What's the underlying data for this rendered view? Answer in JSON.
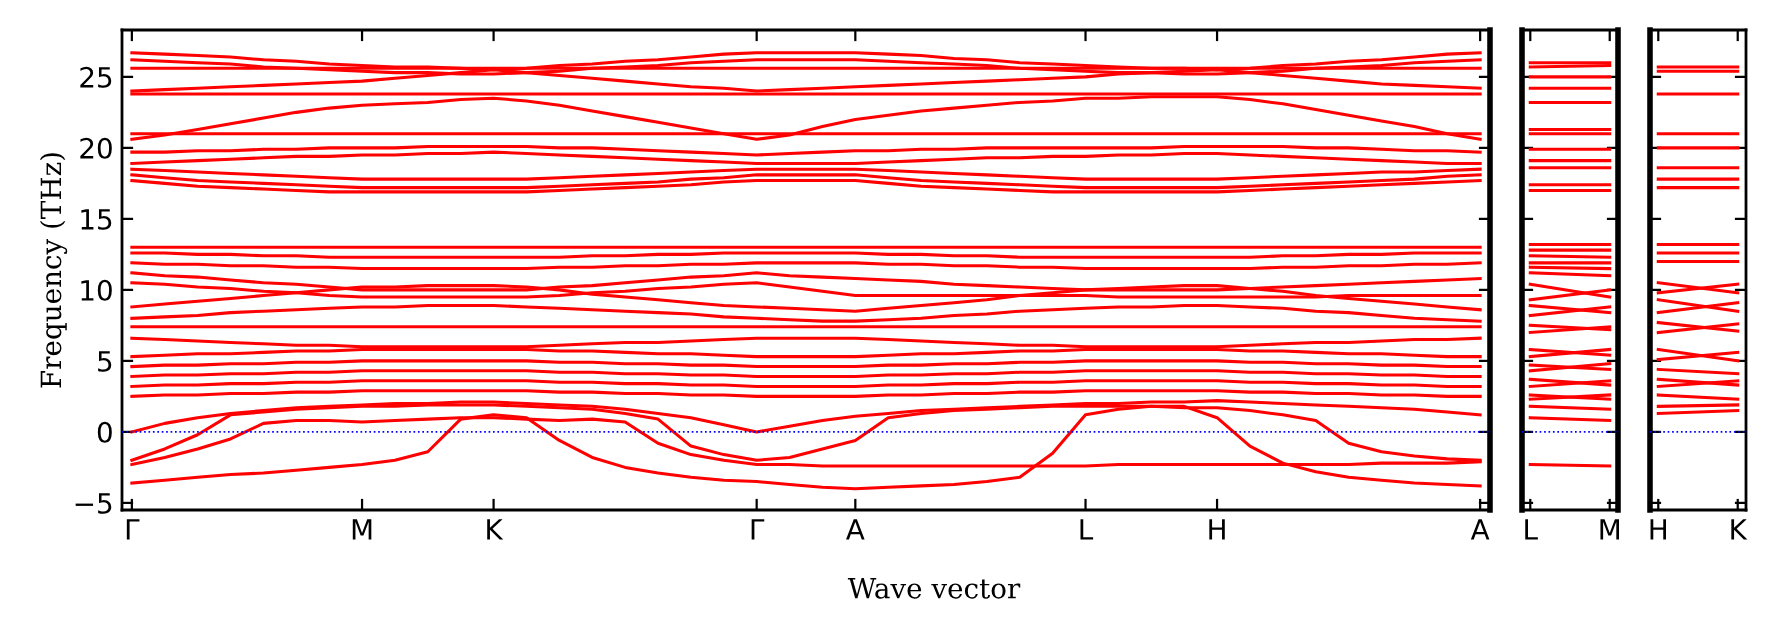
{
  "chart_data": [
    {
      "type": "line",
      "ylabel": "Frequency (THz)",
      "xlabel": "Wave vector",
      "ylim": [
        -5.5,
        28.3
      ],
      "categories": [
        "Γ",
        null,
        null,
        null,
        null,
        null,
        null,
        "M",
        null,
        null,
        null,
        "K",
        null,
        null,
        null,
        null,
        null,
        null,
        null,
        "Γ",
        null,
        null,
        "A",
        null,
        null,
        null,
        null,
        null,
        null,
        "L",
        null,
        null,
        null,
        "H",
        null,
        null,
        null,
        null,
        null,
        null,
        null,
        "A"
      ],
      "yticks": [
        {
          "value": -5,
          "label": "−5"
        },
        0,
        5,
        10,
        15,
        20,
        25
      ],
      "grid": false,
      "line_style": "solid",
      "marker": "none",
      "ref_lines": [
        {
          "axis": "y",
          "value": 0,
          "color": "#0000ff",
          "line_style": "dotted"
        }
      ],
      "series": [
        {
          "color": "#ff0000",
          "values": [
            26.7,
            26.6,
            26.5,
            26.4,
            26.2,
            26.1,
            25.9,
            25.8,
            25.7,
            25.7,
            25.6,
            25.5,
            25.6,
            25.8,
            25.9,
            26.1,
            26.2,
            26.4,
            26.6,
            26.7,
            26.7,
            26.7,
            26.7,
            26.6,
            26.5,
            26.3,
            26.2,
            26.0,
            25.9,
            25.8,
            25.7,
            25.6,
            25.6,
            25.5,
            25.6,
            25.8,
            25.9,
            26.1,
            26.2,
            26.4,
            26.6,
            26.7
          ]
        },
        {
          "color": "#ff0000",
          "values": [
            26.2,
            26.1,
            26.0,
            25.9,
            25.7,
            25.6,
            25.5,
            25.4,
            25.3,
            25.3,
            25.2,
            25.2,
            25.3,
            25.4,
            25.6,
            25.7,
            25.8,
            26.0,
            26.1,
            26.2,
            26.2,
            26.2,
            26.2,
            26.1,
            26.0,
            25.9,
            25.8,
            25.6,
            25.5,
            25.4,
            25.3,
            25.3,
            25.2,
            25.2,
            25.3,
            25.4,
            25.6,
            25.7,
            25.8,
            26.0,
            26.1,
            26.2
          ]
        },
        {
          "color": "#ff0000",
          "values": [
            24.0,
            24.1,
            24.2,
            24.3,
            24.4,
            24.5,
            24.6,
            24.7,
            24.9,
            25.1,
            25.3,
            25.5,
            25.3,
            25.1,
            24.9,
            24.7,
            24.5,
            24.3,
            24.2,
            24.0,
            24.1,
            24.2,
            24.3,
            24.4,
            24.5,
            24.6,
            24.7,
            24.8,
            24.9,
            25.0,
            25.2,
            25.3,
            25.4,
            25.5,
            25.3,
            25.1,
            24.9,
            24.7,
            24.5,
            24.4,
            24.3,
            24.2
          ]
        },
        {
          "color": "#ff0000",
          "values": [
            25.6,
            25.6,
            25.6,
            25.6,
            25.6,
            25.6,
            25.6,
            25.6,
            25.6,
            25.6,
            25.6,
            25.6,
            25.6,
            25.6,
            25.6,
            25.6,
            25.6,
            25.6,
            25.6,
            25.6,
            25.6,
            25.6,
            25.6,
            25.6,
            25.6,
            25.6,
            25.6,
            25.6,
            25.6,
            25.6,
            25.6,
            25.6,
            25.6,
            25.6,
            25.6,
            25.6,
            25.6,
            25.6,
            25.6,
            25.6,
            25.6,
            25.6
          ]
        },
        {
          "color": "#ff0000",
          "values": [
            23.8,
            23.8,
            23.8,
            23.8,
            23.8,
            23.8,
            23.8,
            23.8,
            23.8,
            23.8,
            23.8,
            23.8,
            23.8,
            23.8,
            23.8,
            23.8,
            23.8,
            23.8,
            23.8,
            23.8,
            23.8,
            23.8,
            23.8,
            23.8,
            23.8,
            23.8,
            23.8,
            23.8,
            23.8,
            23.8,
            23.8,
            23.8,
            23.8,
            23.8,
            23.8,
            23.8,
            23.8,
            23.8,
            23.8,
            23.8,
            23.8,
            23.8
          ]
        },
        {
          "color": "#ff0000",
          "values": [
            20.6,
            20.9,
            21.3,
            21.7,
            22.1,
            22.5,
            22.8,
            23.0,
            23.1,
            23.2,
            23.4,
            23.5,
            23.3,
            23.0,
            22.6,
            22.2,
            21.8,
            21.4,
            21.0,
            20.6,
            20.9,
            21.5,
            22.0,
            22.3,
            22.6,
            22.8,
            23.0,
            23.2,
            23.3,
            23.5,
            23.5,
            23.6,
            23.6,
            23.6,
            23.4,
            23.1,
            22.7,
            22.3,
            21.9,
            21.5,
            21.0,
            20.6
          ]
        },
        {
          "color": "#ff0000",
          "values": [
            21.0,
            21.0,
            21.0,
            21.0,
            21.0,
            21.0,
            21.0,
            21.0,
            21.0,
            21.0,
            21.0,
            21.0,
            21.0,
            21.0,
            21.0,
            21.0,
            21.0,
            21.0,
            21.0,
            21.0,
            21.0,
            21.0,
            21.0,
            21.0,
            21.0,
            21.0,
            21.0,
            21.0,
            21.0,
            21.0,
            21.0,
            21.0,
            21.0,
            21.0,
            21.0,
            21.0,
            21.0,
            21.0,
            21.0,
            21.0,
            21.0,
            21.0
          ]
        },
        {
          "color": "#ff0000",
          "values": [
            19.7,
            19.7,
            19.8,
            19.8,
            19.9,
            19.9,
            20.0,
            20.0,
            20.0,
            20.1,
            20.1,
            20.1,
            20.1,
            20.0,
            20.0,
            19.9,
            19.8,
            19.7,
            19.6,
            19.5,
            19.6,
            19.7,
            19.8,
            19.8,
            19.9,
            19.9,
            20.0,
            20.0,
            20.0,
            20.0,
            20.0,
            20.0,
            20.1,
            20.1,
            20.1,
            20.1,
            20.0,
            20.0,
            19.9,
            19.8,
            19.8,
            19.7
          ]
        },
        {
          "color": "#ff0000",
          "values": [
            18.9,
            19.0,
            19.1,
            19.2,
            19.3,
            19.4,
            19.4,
            19.5,
            19.5,
            19.6,
            19.6,
            19.7,
            19.6,
            19.5,
            19.4,
            19.3,
            19.2,
            19.1,
            19.0,
            18.9,
            18.9,
            18.9,
            18.9,
            19.0,
            19.1,
            19.2,
            19.3,
            19.3,
            19.4,
            19.4,
            19.5,
            19.5,
            19.6,
            19.6,
            19.5,
            19.4,
            19.3,
            19.2,
            19.1,
            19.0,
            18.9,
            18.9
          ]
        },
        {
          "color": "#ff0000",
          "values": [
            18.5,
            18.4,
            18.3,
            18.2,
            18.1,
            18.0,
            17.9,
            17.8,
            17.8,
            17.8,
            17.8,
            17.8,
            17.8,
            17.9,
            18.0,
            18.1,
            18.2,
            18.3,
            18.4,
            18.5,
            18.5,
            18.5,
            18.5,
            18.4,
            18.3,
            18.2,
            18.1,
            18.0,
            17.9,
            17.8,
            17.8,
            17.8,
            17.8,
            17.8,
            17.9,
            18.0,
            18.1,
            18.2,
            18.3,
            18.3,
            18.4,
            18.5
          ]
        },
        {
          "color": "#ff0000",
          "values": [
            18.1,
            17.9,
            17.7,
            17.6,
            17.5,
            17.4,
            17.3,
            17.2,
            17.2,
            17.2,
            17.2,
            17.2,
            17.2,
            17.3,
            17.4,
            17.5,
            17.6,
            17.8,
            17.9,
            18.1,
            18.1,
            18.1,
            18.1,
            17.9,
            17.7,
            17.6,
            17.5,
            17.4,
            17.3,
            17.2,
            17.2,
            17.2,
            17.2,
            17.2,
            17.3,
            17.4,
            17.5,
            17.6,
            17.7,
            17.8,
            18.0,
            18.1
          ]
        },
        {
          "color": "#ff0000",
          "values": [
            17.7,
            17.5,
            17.3,
            17.2,
            17.1,
            17.0,
            16.9,
            16.9,
            16.9,
            16.9,
            16.9,
            16.9,
            16.9,
            17.0,
            17.1,
            17.2,
            17.3,
            17.4,
            17.6,
            17.7,
            17.7,
            17.7,
            17.7,
            17.5,
            17.3,
            17.2,
            17.1,
            17.0,
            16.9,
            16.9,
            16.9,
            16.9,
            16.9,
            16.9,
            17.0,
            17.1,
            17.2,
            17.3,
            17.4,
            17.5,
            17.6,
            17.7
          ]
        },
        {
          "color": "#ff0000",
          "values": [
            13.0,
            13.0,
            13.0,
            13.0,
            13.0,
            13.0,
            13.0,
            13.0,
            13.0,
            13.0,
            13.0,
            13.0,
            13.0,
            13.0,
            13.0,
            13.0,
            13.0,
            13.0,
            13.0,
            13.0,
            13.0,
            13.0,
            13.0,
            13.0,
            13.0,
            13.0,
            13.0,
            13.0,
            13.0,
            13.0,
            13.0,
            13.0,
            13.0,
            13.0,
            13.0,
            13.0,
            13.0,
            13.0,
            13.0,
            13.0,
            13.0,
            13.0
          ]
        },
        {
          "color": "#ff0000",
          "values": [
            12.6,
            12.6,
            12.5,
            12.5,
            12.4,
            12.4,
            12.3,
            12.3,
            12.3,
            12.3,
            12.3,
            12.3,
            12.3,
            12.3,
            12.4,
            12.4,
            12.5,
            12.5,
            12.6,
            12.6,
            12.6,
            12.6,
            12.6,
            12.5,
            12.5,
            12.4,
            12.4,
            12.3,
            12.3,
            12.3,
            12.3,
            12.3,
            12.3,
            12.3,
            12.3,
            12.4,
            12.4,
            12.5,
            12.5,
            12.6,
            12.6,
            12.6
          ]
        },
        {
          "color": "#ff0000",
          "values": [
            11.9,
            11.8,
            11.8,
            11.7,
            11.7,
            11.6,
            11.6,
            11.5,
            11.5,
            11.5,
            11.5,
            11.5,
            11.5,
            11.6,
            11.6,
            11.7,
            11.7,
            11.8,
            11.8,
            11.9,
            11.9,
            11.9,
            11.9,
            11.8,
            11.8,
            11.7,
            11.7,
            11.6,
            11.6,
            11.5,
            11.5,
            11.5,
            11.5,
            11.5,
            11.5,
            11.6,
            11.6,
            11.7,
            11.7,
            11.8,
            11.8,
            11.9
          ]
        },
        {
          "color": "#ff0000",
          "values": [
            11.2,
            11.0,
            10.9,
            10.7,
            10.5,
            10.4,
            10.2,
            10.0,
            10.0,
            10.0,
            10.0,
            10.0,
            10.0,
            10.2,
            10.3,
            10.5,
            10.7,
            10.9,
            11.0,
            11.2,
            11.0,
            10.9,
            10.8,
            10.7,
            10.6,
            10.4,
            10.3,
            10.2,
            10.1,
            10.0,
            10.0,
            10.0,
            10.0,
            10.0,
            10.1,
            10.2,
            10.3,
            10.4,
            10.5,
            10.6,
            10.7,
            10.8
          ]
        },
        {
          "color": "#ff0000",
          "values": [
            10.5,
            10.4,
            10.2,
            10.1,
            9.9,
            9.8,
            9.6,
            9.5,
            9.5,
            9.5,
            9.5,
            9.5,
            9.5,
            9.6,
            9.8,
            9.9,
            10.1,
            10.2,
            10.4,
            10.5,
            10.2,
            9.9,
            9.6,
            9.6,
            9.6,
            9.6,
            9.6,
            9.6,
            9.6,
            9.6,
            9.5,
            9.5,
            9.5,
            9.5,
            9.5,
            9.5,
            9.5,
            9.6,
            9.6,
            9.6,
            9.6,
            9.6
          ]
        },
        {
          "color": "#ff0000",
          "values": [
            8.8,
            9.0,
            9.2,
            9.4,
            9.6,
            9.8,
            10.0,
            10.2,
            10.2,
            10.3,
            10.3,
            10.3,
            10.2,
            10.0,
            9.7,
            9.5,
            9.3,
            9.1,
            8.9,
            8.8,
            8.7,
            8.6,
            8.5,
            8.7,
            8.9,
            9.1,
            9.3,
            9.6,
            9.8,
            10.0,
            10.1,
            10.2,
            10.3,
            10.3,
            10.1,
            9.9,
            9.6,
            9.4,
            9.2,
            9.0,
            8.8,
            8.6
          ]
        },
        {
          "color": "#ff0000",
          "values": [
            8.0,
            8.1,
            8.2,
            8.4,
            8.5,
            8.6,
            8.7,
            8.8,
            8.8,
            8.9,
            8.9,
            8.9,
            8.8,
            8.7,
            8.6,
            8.5,
            8.4,
            8.3,
            8.1,
            8.0,
            7.9,
            7.8,
            7.8,
            7.9,
            8.0,
            8.2,
            8.3,
            8.5,
            8.6,
            8.7,
            8.8,
            8.8,
            8.9,
            8.9,
            8.8,
            8.7,
            8.5,
            8.4,
            8.2,
            8.0,
            7.9,
            7.8
          ]
        },
        {
          "color": "#ff0000",
          "values": [
            7.4,
            7.4,
            7.4,
            7.4,
            7.4,
            7.4,
            7.4,
            7.4,
            7.4,
            7.4,
            7.4,
            7.4,
            7.4,
            7.4,
            7.4,
            7.4,
            7.4,
            7.4,
            7.4,
            7.4,
            7.4,
            7.4,
            7.4,
            7.4,
            7.4,
            7.4,
            7.4,
            7.4,
            7.4,
            7.4,
            7.4,
            7.4,
            7.4,
            7.4,
            7.4,
            7.4,
            7.4,
            7.4,
            7.4,
            7.4,
            7.4,
            7.4
          ]
        },
        {
          "color": "#ff0000",
          "values": [
            6.6,
            6.5,
            6.4,
            6.3,
            6.2,
            6.1,
            6.1,
            6.0,
            6.0,
            6.0,
            6.0,
            6.0,
            6.0,
            6.1,
            6.2,
            6.3,
            6.3,
            6.4,
            6.5,
            6.6,
            6.6,
            6.6,
            6.6,
            6.5,
            6.4,
            6.3,
            6.2,
            6.1,
            6.1,
            6.0,
            6.0,
            6.0,
            6.0,
            6.0,
            6.1,
            6.2,
            6.3,
            6.3,
            6.4,
            6.5,
            6.5,
            6.6
          ]
        },
        {
          "color": "#ff0000",
          "values": [
            5.3,
            5.4,
            5.5,
            5.5,
            5.6,
            5.7,
            5.7,
            5.8,
            5.8,
            5.8,
            5.8,
            5.8,
            5.8,
            5.7,
            5.7,
            5.6,
            5.5,
            5.5,
            5.4,
            5.3,
            5.3,
            5.3,
            5.3,
            5.4,
            5.5,
            5.5,
            5.6,
            5.7,
            5.7,
            5.8,
            5.8,
            5.8,
            5.8,
            5.8,
            5.7,
            5.7,
            5.6,
            5.5,
            5.5,
            5.4,
            5.3,
            5.3
          ]
        },
        {
          "color": "#ff0000",
          "values": [
            4.6,
            4.7,
            4.7,
            4.8,
            4.8,
            4.9,
            4.9,
            5.0,
            5.0,
            5.0,
            5.0,
            5.0,
            5.0,
            4.9,
            4.9,
            4.8,
            4.8,
            4.7,
            4.7,
            4.6,
            4.6,
            4.6,
            4.6,
            4.7,
            4.7,
            4.8,
            4.8,
            4.9,
            4.9,
            5.0,
            5.0,
            5.0,
            5.0,
            5.0,
            4.9,
            4.9,
            4.8,
            4.8,
            4.7,
            4.7,
            4.6,
            4.6
          ]
        },
        {
          "color": "#ff0000",
          "values": [
            3.9,
            4.0,
            4.0,
            4.1,
            4.1,
            4.2,
            4.2,
            4.3,
            4.3,
            4.3,
            4.3,
            4.3,
            4.3,
            4.2,
            4.2,
            4.1,
            4.1,
            4.0,
            4.0,
            3.9,
            3.9,
            3.9,
            3.9,
            4.0,
            4.0,
            4.1,
            4.1,
            4.2,
            4.2,
            4.3,
            4.3,
            4.3,
            4.3,
            4.3,
            4.2,
            4.2,
            4.1,
            4.1,
            4.0,
            4.0,
            3.9,
            3.9
          ]
        },
        {
          "color": "#ff0000",
          "values": [
            3.2,
            3.3,
            3.3,
            3.4,
            3.4,
            3.5,
            3.5,
            3.6,
            3.6,
            3.6,
            3.6,
            3.6,
            3.6,
            3.5,
            3.5,
            3.4,
            3.4,
            3.3,
            3.3,
            3.2,
            3.2,
            3.2,
            3.2,
            3.3,
            3.3,
            3.4,
            3.4,
            3.5,
            3.5,
            3.6,
            3.6,
            3.6,
            3.6,
            3.6,
            3.5,
            3.5,
            3.4,
            3.4,
            3.3,
            3.3,
            3.2,
            3.2
          ]
        },
        {
          "color": "#ff0000",
          "values": [
            2.5,
            2.6,
            2.6,
            2.7,
            2.7,
            2.8,
            2.8,
            2.9,
            2.9,
            2.9,
            2.9,
            2.9,
            2.9,
            2.8,
            2.8,
            2.7,
            2.7,
            2.6,
            2.6,
            2.5,
            2.5,
            2.5,
            2.5,
            2.6,
            2.6,
            2.7,
            2.7,
            2.8,
            2.8,
            2.9,
            2.9,
            2.9,
            2.9,
            2.9,
            2.8,
            2.8,
            2.7,
            2.7,
            2.6,
            2.6,
            2.5,
            2.5
          ]
        },
        {
          "color": "#ff0000",
          "values": [
            0,
            0.6,
            1.0,
            1.3,
            1.5,
            1.7,
            1.8,
            1.9,
            2.0,
            2.0,
            2.1,
            2.1,
            2.0,
            1.9,
            1.8,
            1.6,
            1.3,
            1.0,
            0.5,
            0,
            0.4,
            0.8,
            1.1,
            1.3,
            1.5,
            1.6,
            1.7,
            1.8,
            1.9,
            2.0,
            2.0,
            2.1,
            2.1,
            2.2,
            2.1,
            2.0,
            1.9,
            1.8,
            1.7,
            1.6,
            1.4,
            1.2
          ]
        },
        {
          "color": "#ff0000",
          "values": [
            -3.6,
            -3.4,
            -3.2,
            -3.0,
            -2.9,
            -2.7,
            -2.5,
            -2.3,
            -2.0,
            -1.4,
            0.9,
            1.2,
            1.0,
            -0.6,
            -1.8,
            -2.5,
            -2.9,
            -3.2,
            -3.4,
            -3.5,
            -3.7,
            -3.9,
            -4.0,
            -3.9,
            -3.8,
            -3.7,
            -3.5,
            -3.2,
            -1.5,
            1.2,
            1.6,
            1.8,
            1.8,
            1.0,
            -1.0,
            -2.2,
            -2.8,
            -3.2,
            -3.4,
            -3.6,
            -3.7,
            -3.8
          ]
        },
        {
          "color": "#ff0000",
          "values": [
            -2.3,
            -1.8,
            -1.2,
            -0.5,
            0.6,
            0.8,
            0.8,
            0.7,
            0.8,
            0.9,
            1.0,
            1.0,
            0.9,
            0.8,
            0.9,
            0.7,
            -0.8,
            -1.6,
            -2.0,
            -2.3,
            -2.3,
            -2.4,
            -2.4,
            -2.4,
            -2.4,
            -2.4,
            -2.4,
            -2.4,
            -2.4,
            -2.4,
            -2.3,
            -2.3,
            -2.3,
            -2.3,
            -2.3,
            -2.3,
            -2.3,
            -2.3,
            -2.2,
            -2.2,
            -2.2,
            -2.1
          ]
        },
        {
          "color": "#ff0000",
          "values": [
            -2.0,
            -1.2,
            -0.2,
            1.2,
            1.4,
            1.6,
            1.7,
            1.8,
            1.8,
            1.9,
            1.9,
            1.9,
            1.8,
            1.7,
            1.6,
            1.3,
            0.9,
            -1.0,
            -1.6,
            -2.0,
            -1.8,
            -1.2,
            -0.6,
            1.0,
            1.3,
            1.5,
            1.6,
            1.7,
            1.8,
            1.8,
            1.8,
            1.8,
            1.7,
            1.7,
            1.5,
            1.2,
            0.8,
            -0.8,
            -1.4,
            -1.7,
            -1.9,
            -2.0
          ]
        }
      ]
    },
    {
      "type": "line",
      "ylim": [
        -5.5,
        28.3
      ],
      "tick_labels": "x",
      "grid": false,
      "line_style": "solid",
      "marker": "none",
      "categories": [
        "L",
        "M"
      ],
      "yticks": [
        -5,
        0,
        5,
        10,
        15,
        20,
        25
      ],
      "ref_lines": [
        {
          "axis": "y",
          "value": 0,
          "color": "#0000ff",
          "line_style": "dotted"
        }
      ],
      "series": [
        {
          "color": "#ff0000",
          "values": [
            26.0,
            26.0
          ]
        },
        {
          "color": "#ff0000",
          "values": [
            25.7,
            25.8
          ]
        },
        {
          "color": "#ff0000",
          "values": [
            25.0,
            25.0
          ]
        },
        {
          "color": "#ff0000",
          "values": [
            24.2,
            24.2
          ]
        },
        {
          "color": "#ff0000",
          "values": [
            23.2,
            23.2
          ]
        },
        {
          "color": "#ff0000",
          "values": [
            21.3,
            21.3
          ]
        },
        {
          "color": "#ff0000",
          "values": [
            21.0,
            21.0
          ]
        },
        {
          "color": "#ff0000",
          "values": [
            19.9,
            19.9
          ]
        },
        {
          "color": "#ff0000",
          "values": [
            19.1,
            19.1
          ]
        },
        {
          "color": "#ff0000",
          "values": [
            18.6,
            18.6
          ]
        },
        {
          "color": "#ff0000",
          "values": [
            17.4,
            17.4
          ]
        },
        {
          "color": "#ff0000",
          "values": [
            17.0,
            17.0
          ]
        },
        {
          "color": "#ff0000",
          "values": [
            13.2,
            13.2
          ]
        },
        {
          "color": "#ff0000",
          "values": [
            12.8,
            12.8
          ]
        },
        {
          "color": "#ff0000",
          "values": [
            12.4,
            12.3
          ]
        },
        {
          "color": "#ff0000",
          "values": [
            11.9,
            11.9
          ]
        },
        {
          "color": "#ff0000",
          "values": [
            11.6,
            11.5
          ]
        },
        {
          "color": "#ff0000",
          "values": [
            11.2,
            11.0
          ]
        },
        {
          "color": "#ff0000",
          "values": [
            10.4,
            9.5
          ]
        },
        {
          "color": "#ff0000",
          "values": [
            9.3,
            10.0
          ]
        },
        {
          "color": "#ff0000",
          "values": [
            8.9,
            8.4
          ]
        },
        {
          "color": "#ff0000",
          "values": [
            8.2,
            8.8
          ]
        },
        {
          "color": "#ff0000",
          "values": [
            7.5,
            7.2
          ]
        },
        {
          "color": "#ff0000",
          "values": [
            7.0,
            7.4
          ]
        },
        {
          "color": "#ff0000",
          "values": [
            5.8,
            5.4
          ]
        },
        {
          "color": "#ff0000",
          "values": [
            5.3,
            5.8
          ]
        },
        {
          "color": "#ff0000",
          "values": [
            4.7,
            4.4
          ]
        },
        {
          "color": "#ff0000",
          "values": [
            4.3,
            4.8
          ]
        },
        {
          "color": "#ff0000",
          "values": [
            3.7,
            3.3
          ]
        },
        {
          "color": "#ff0000",
          "values": [
            3.2,
            3.6
          ]
        },
        {
          "color": "#ff0000",
          "values": [
            2.6,
            2.3
          ]
        },
        {
          "color": "#ff0000",
          "values": [
            2.3,
            2.6
          ]
        },
        {
          "color": "#ff0000",
          "values": [
            1.8,
            1.6
          ]
        },
        {
          "color": "#ff0000",
          "values": [
            1.0,
            0.8
          ]
        },
        {
          "color": "#ff0000",
          "values": [
            -2.3,
            -2.4
          ]
        }
      ]
    },
    {
      "type": "line",
      "ylim": [
        -5.5,
        28.3
      ],
      "tick_labels": "x",
      "grid": false,
      "line_style": "solid",
      "marker": "none",
      "categories": [
        "H",
        "K"
      ],
      "yticks": [
        -5,
        0,
        5,
        10,
        15,
        20,
        25
      ],
      "ref_lines": [
        {
          "axis": "y",
          "value": 0,
          "color": "#0000ff",
          "line_style": "dotted"
        }
      ],
      "series": [
        {
          "color": "#ff0000",
          "values": [
            25.7,
            25.7
          ]
        },
        {
          "color": "#ff0000",
          "values": [
            25.4,
            25.4
          ]
        },
        {
          "color": "#ff0000",
          "values": [
            23.8,
            23.8
          ]
        },
        {
          "color": "#ff0000",
          "values": [
            21.0,
            21.0
          ]
        },
        {
          "color": "#ff0000",
          "values": [
            20.0,
            20.0
          ]
        },
        {
          "color": "#ff0000",
          "values": [
            18.6,
            18.6
          ]
        },
        {
          "color": "#ff0000",
          "values": [
            17.8,
            17.8
          ]
        },
        {
          "color": "#ff0000",
          "values": [
            17.2,
            17.2
          ]
        },
        {
          "color": "#ff0000",
          "values": [
            13.2,
            13.2
          ]
        },
        {
          "color": "#ff0000",
          "values": [
            12.6,
            12.6
          ]
        },
        {
          "color": "#ff0000",
          "values": [
            12.0,
            12.0
          ]
        },
        {
          "color": "#ff0000",
          "values": [
            10.5,
            9.8
          ]
        },
        {
          "color": "#ff0000",
          "values": [
            9.8,
            10.4
          ]
        },
        {
          "color": "#ff0000",
          "values": [
            9.3,
            8.5
          ]
        },
        {
          "color": "#ff0000",
          "values": [
            8.4,
            9.1
          ]
        },
        {
          "color": "#ff0000",
          "values": [
            7.7,
            7.1
          ]
        },
        {
          "color": "#ff0000",
          "values": [
            7.0,
            7.6
          ]
        },
        {
          "color": "#ff0000",
          "values": [
            5.8,
            5.0
          ]
        },
        {
          "color": "#ff0000",
          "values": [
            5.1,
            5.6
          ]
        },
        {
          "color": "#ff0000",
          "values": [
            4.4,
            4.1
          ]
        },
        {
          "color": "#ff0000",
          "values": [
            3.7,
            3.3
          ]
        },
        {
          "color": "#ff0000",
          "values": [
            3.2,
            3.6
          ]
        },
        {
          "color": "#ff0000",
          "values": [
            2.6,
            2.3
          ]
        },
        {
          "color": "#ff0000",
          "values": [
            1.8,
            1.9
          ]
        },
        {
          "color": "#ff0000",
          "values": [
            1.3,
            1.5
          ]
        }
      ]
    }
  ]
}
